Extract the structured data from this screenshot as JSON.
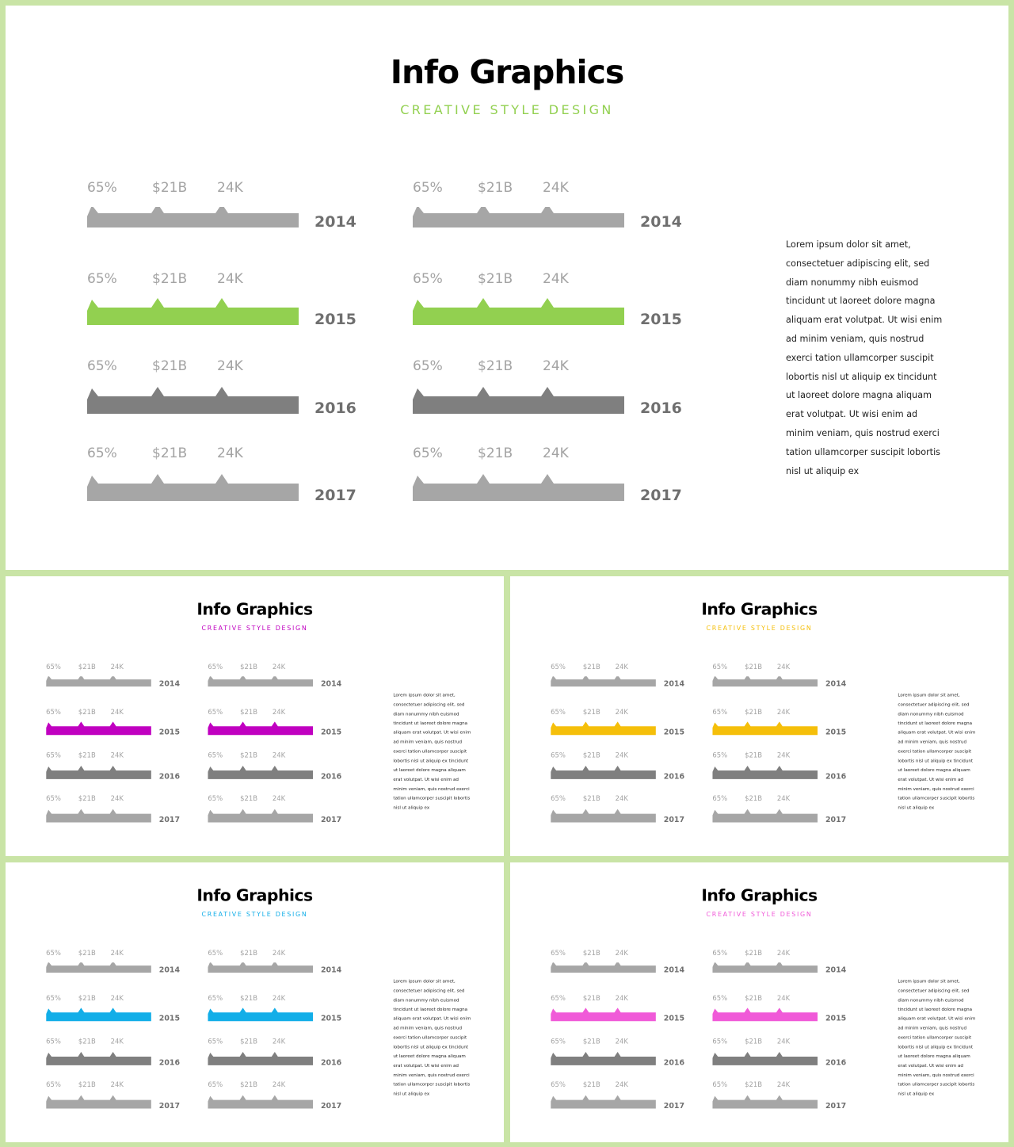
{
  "slides": [
    {
      "title": "Info Graphics",
      "subtitle": "CREATIVE STYLE DESIGN",
      "accent": "#92d050"
    },
    {
      "title": "Info Graphics",
      "subtitle": "CREATIVE STYLE DESIGN",
      "accent": "#c000c0"
    },
    {
      "title": "Info Graphics",
      "subtitle": "CREATIVE STYLE DESIGN",
      "accent": "#f5bf0a"
    },
    {
      "title": "Info Graphics",
      "subtitle": "CREATIVE STYLE DESIGN",
      "accent": "#12aee8"
    },
    {
      "title": "Info Graphics",
      "subtitle": "CREATIVE STYLE DESIGN",
      "accent": "#f05ad8"
    }
  ],
  "stat_labels": [
    "65%",
    "$21B",
    "24K"
  ],
  "rows": [
    {
      "year": "2014",
      "tone": "light"
    },
    {
      "year": "2015",
      "tone": "accent"
    },
    {
      "year": "2016",
      "tone": "dark"
    },
    {
      "year": "2017",
      "tone": "light"
    }
  ],
  "colors": {
    "light": "#a6a6a6",
    "dark": "#7f7f7f"
  },
  "lorem_lines": [
    "Lorem  ipsum dolor sit amet,",
    "consectetuer  adipiscing elit, sed",
    "diam nonummy  nibh euismod",
    "tincidunt ut laoreet dolore magna",
    "aliquam erat volutpat. Ut wisi enim",
    "ad minim veniam, quis nostrud",
    "exerci tation ullamcorper suscipit",
    "lobortis nisl ut aliquip ex tincidunt",
    "ut laoreet dolore magna aliquam",
    "erat volutpat. Ut wisi enim ad",
    "minim veniam, quis nostrud exerci",
    "tation ullamcorper suscipit lobortis",
    "nisl ut aliquip ex"
  ]
}
